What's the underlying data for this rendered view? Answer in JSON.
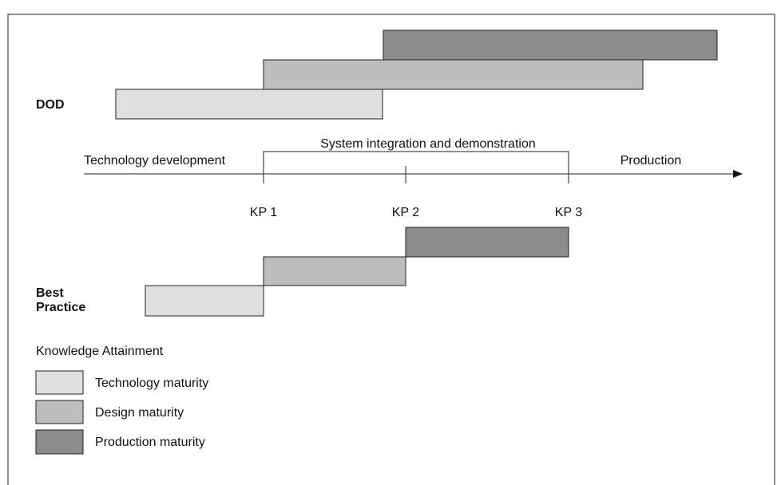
{
  "groups": {
    "dod": "DOD",
    "best_practice": [
      "Best",
      "Practice"
    ]
  },
  "timeline": {
    "phases": [
      "Technology development",
      "System integration and demonstration",
      "Production"
    ],
    "knowledge_points": [
      "KP 1",
      "KP 2",
      "KP 3"
    ]
  },
  "legend": {
    "title": "Knowledge Attainment",
    "items": [
      "Technology maturity",
      "Design maturity",
      "Production maturity"
    ]
  }
}
